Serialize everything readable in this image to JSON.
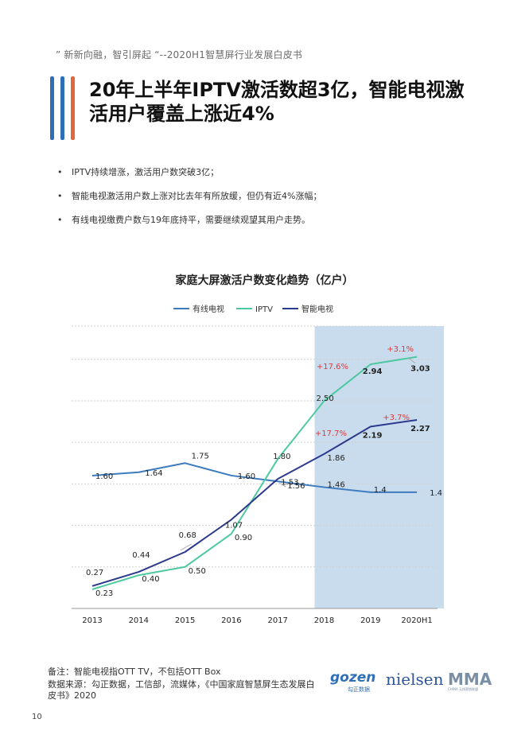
{
  "header": {
    "quote": "” 新新向融，智引屏起 “--2020H1智慧屏行业发展白皮书"
  },
  "title": {
    "line1": "20年上半年IPTV激活数超3亿，智能电视激",
    "line2": "活用户覆盖上涨近4%"
  },
  "bullets": [
    "IPTV持续增涨，激活用户数突破3亿；",
    "智能电视激活用户数上涨对比去年有所放缓，但仍有近4%涨幅；",
    "有线电视缴费户数与19年底持平，需要继续观望其用户走势。"
  ],
  "chart_data": {
    "type": "line",
    "title": "家庭大屏激活户数变化趋势（亿户）",
    "categories": [
      "2013",
      "2014",
      "2015",
      "2016",
      "2017",
      "2018",
      "2019",
      "2020H1"
    ],
    "series": [
      {
        "name": "有线电视",
        "color": "#3d7bbf",
        "values": [
          1.6,
          1.64,
          1.75,
          1.6,
          1.53,
          1.46,
          1.4,
          1.4
        ],
        "labels": [
          "1.60",
          "1.64",
          "1.75",
          "1.60",
          "1.53",
          "1.46",
          "1.4",
          "1.4"
        ]
      },
      {
        "name": "IPTV",
        "color": "#4dc9a0",
        "values": [
          0.23,
          0.4,
          0.5,
          0.9,
          1.8,
          2.5,
          2.94,
          3.03
        ],
        "labels": [
          "0.23",
          "0.40",
          "0.50",
          "0.90",
          "1.80",
          "2.50",
          "2.94",
          "3.03"
        ]
      },
      {
        "name": "智能电视",
        "color": "#2b3a8c",
        "values": [
          0.27,
          0.44,
          0.68,
          1.07,
          1.56,
          1.86,
          2.19,
          2.27
        ],
        "labels": [
          "0.27",
          "0.44",
          "0.68",
          "1.07",
          "1.56",
          "1.86",
          "2.19",
          "2.27"
        ]
      }
    ],
    "ylim": [
      0,
      3.4
    ],
    "growth_annotations": [
      "+3.1%",
      "+17.6%",
      "+3.7%",
      "+17.7%"
    ],
    "highlight_range": [
      "2018",
      "2020H1"
    ],
    "legend_position": "top-center",
    "colors": {
      "highlight": "#c9dcee",
      "annotation": "#e03a3a",
      "grid": "#d0d0d0"
    }
  },
  "footnote": {
    "note": "备注：智能电视指OTT TV，不包括OTT Box",
    "source": "数据来源：勾正数据，工信部，流媒体，《中国家庭智慧屏生态发展白皮书》2020"
  },
  "logos": {
    "gozen": "gozen",
    "gozen_sub": "勾正数据",
    "nielsen": "nielsen",
    "mma": "MMA",
    "mma_sub": "CHINA 无线营销联盟"
  },
  "page_number": "10"
}
